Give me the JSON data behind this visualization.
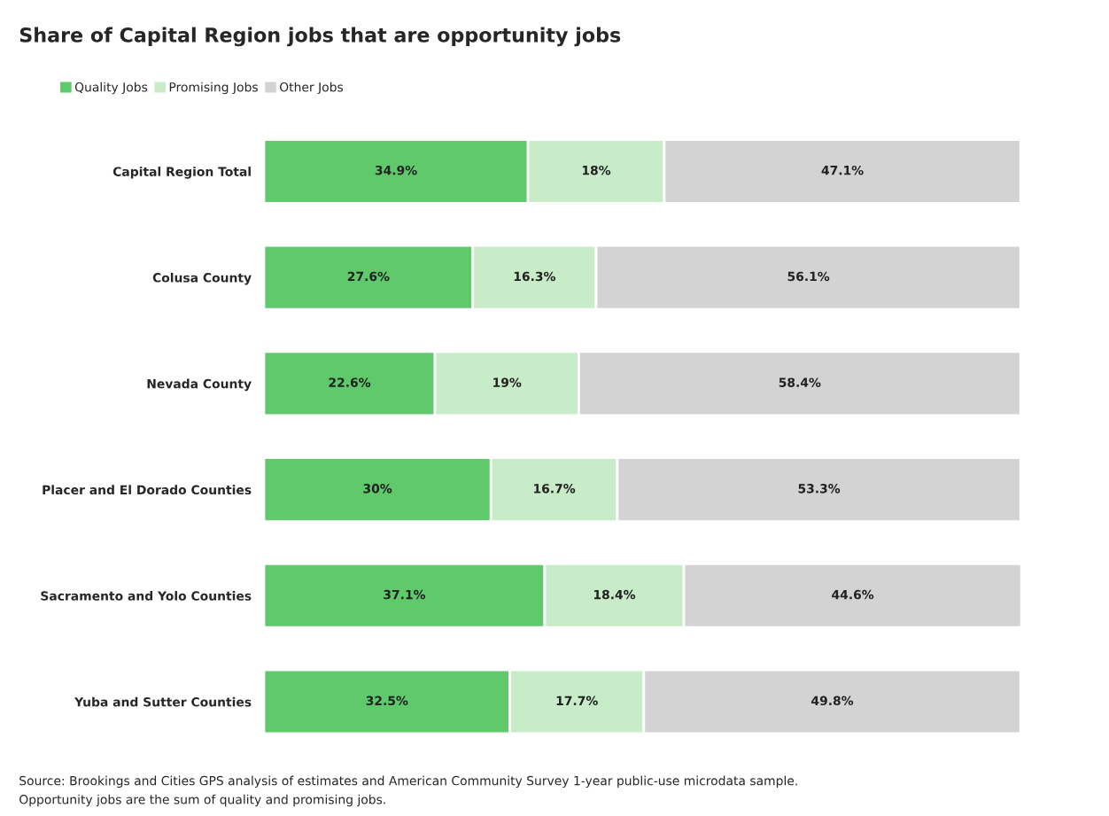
{
  "chart_data": {
    "type": "bar",
    "orientation": "horizontal",
    "stacked": true,
    "title": "Share of Capital Region jobs that are opportunity jobs",
    "categories": [
      "Capital Region Total",
      "Colusa County",
      "Nevada County",
      "Placer and El Dorado Counties",
      "Sacramento and Yolo Counties",
      "Yuba and Sutter Counties"
    ],
    "series": [
      {
        "name": "Quality Jobs",
        "color": "#5fc96b",
        "values": [
          34.9,
          27.6,
          22.6,
          30,
          37.1,
          32.5
        ],
        "value_labels": [
          "34.9%",
          "27.6%",
          "22.6%",
          "30%",
          "37.1%",
          "32.5%"
        ]
      },
      {
        "name": "Promising Jobs",
        "color": "#c8ebc8",
        "values": [
          18,
          16.3,
          19,
          16.7,
          18.4,
          17.7
        ],
        "value_labels": [
          "18%",
          "16.3%",
          "19%",
          "16.7%",
          "18.4%",
          "17.7%"
        ]
      },
      {
        "name": "Other Jobs",
        "color": "#d3d3d3",
        "values": [
          47.1,
          56.1,
          58.4,
          53.3,
          44.6,
          49.8
        ],
        "value_labels": [
          "47.1%",
          "56.1%",
          "58.4%",
          "53.3%",
          "44.6%",
          "49.8%"
        ]
      }
    ],
    "legend": "top left",
    "annotations": [
      "Source: Brookings and Cities GPS analysis of estimates and American Community Survey 1-year public-use microdata sample.",
      "Opportunity jobs are the sum of quality and promising jobs."
    ]
  }
}
